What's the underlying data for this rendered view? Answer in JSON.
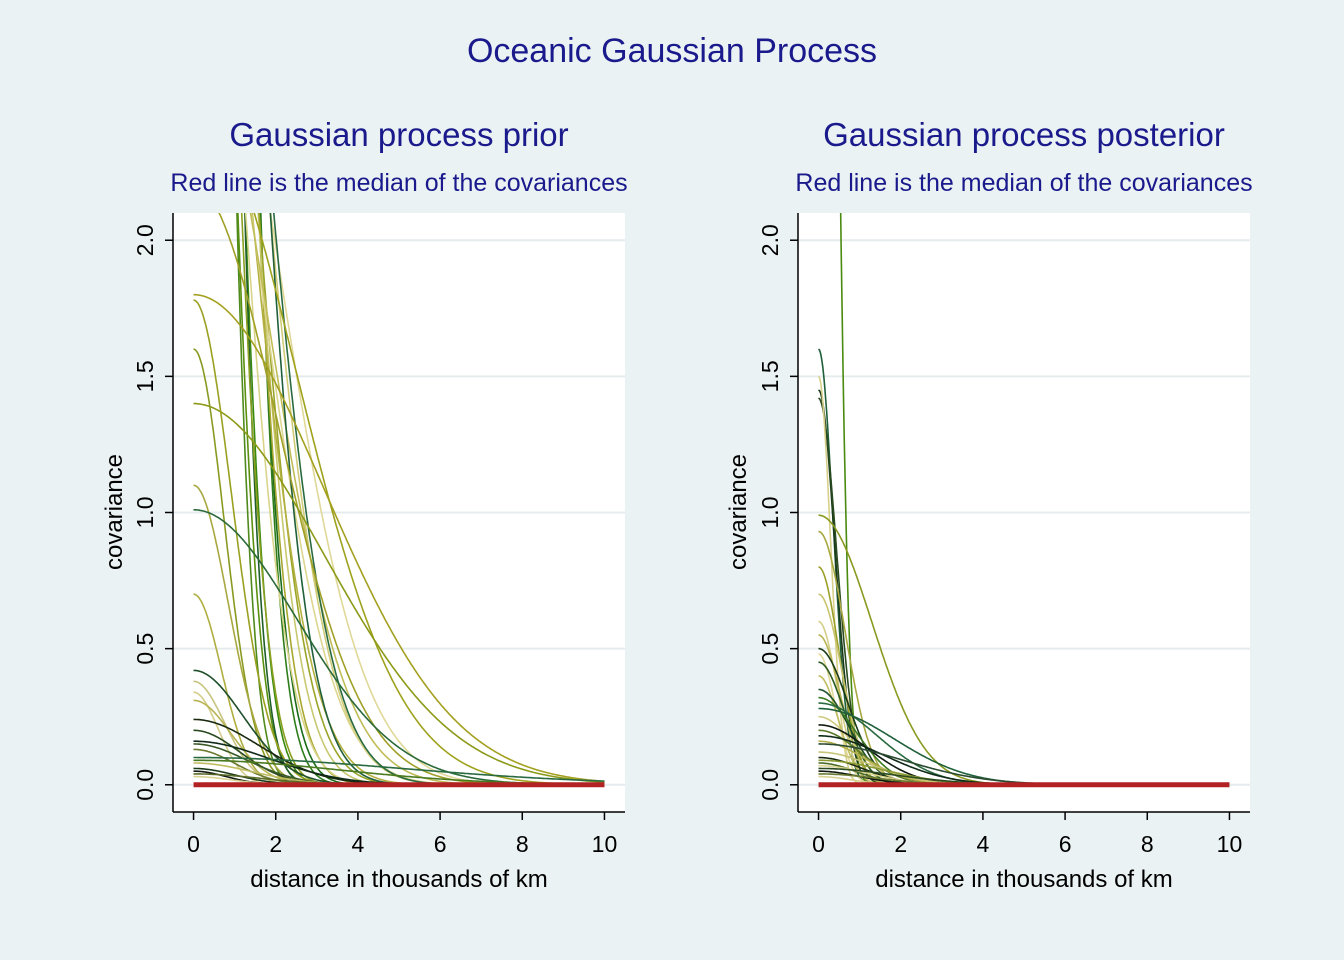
{
  "figure": {
    "title": "Oceanic Gaussian Process",
    "background_color": "#eaf2f3",
    "title_color": "#1a1a8c"
  },
  "chart_data": [
    {
      "type": "line",
      "title": "Gaussian process prior",
      "subtitle": "Red line is the median of the covariances",
      "xlabel": "distance in thousands of km",
      "ylabel": "covariance",
      "xlim": [
        -0.5,
        10.5
      ],
      "ylim": [
        -0.1,
        2.1
      ],
      "xticks": [
        0,
        2,
        4,
        6,
        8,
        10
      ],
      "xtick_labels": [
        "0",
        "2",
        "4",
        "6",
        "8",
        "10"
      ],
      "yticks": [
        0,
        0.5,
        1,
        1.5,
        2
      ],
      "ytick_labels": [
        "0.0",
        "0.5",
        "1.0",
        "1.5",
        "2.0"
      ],
      "grid": true,
      "legend": "none",
      "median_color": "#b22222",
      "median": {
        "x": [
          0,
          10
        ],
        "y": [
          0,
          0
        ]
      },
      "curve_form": "eta_sq * exp(-rho_sq * distance^2)",
      "curves": [
        {
          "eta_sq": 9.0,
          "rho_sq": 0.55,
          "color": "#1a6b1a"
        },
        {
          "eta_sq": 12.0,
          "rho_sq": 0.65,
          "color": "#2e7d1a"
        },
        {
          "eta_sq": 7.5,
          "rho_sq": 0.8,
          "color": "#3a8a10"
        },
        {
          "eta_sq": 6.0,
          "rho_sq": 0.9,
          "color": "#5a9010"
        },
        {
          "eta_sq": 10.0,
          "rho_sq": 1.0,
          "color": "#1f5f2a"
        },
        {
          "eta_sq": 8.0,
          "rho_sq": 1.2,
          "color": "#4f8a1c"
        },
        {
          "eta_sq": 5.5,
          "rho_sq": 0.7,
          "color": "#8aa020"
        },
        {
          "eta_sq": 6.5,
          "rho_sq": 0.45,
          "color": "#a8a830"
        },
        {
          "eta_sq": 5.0,
          "rho_sq": 0.35,
          "color": "#c8c870"
        },
        {
          "eta_sq": 4.0,
          "rho_sq": 0.4,
          "color": "#d8d48a"
        },
        {
          "eta_sq": 4.5,
          "rho_sq": 0.3,
          "color": "#9aa428"
        },
        {
          "eta_sq": 3.5,
          "rho_sq": 0.25,
          "color": "#b4b040"
        },
        {
          "eta_sq": 4.2,
          "rho_sq": 0.2,
          "color": "#d0cc78"
        },
        {
          "eta_sq": 3.0,
          "rho_sq": 0.18,
          "color": "#dcd690"
        },
        {
          "eta_sq": 2.8,
          "rho_sq": 0.15,
          "color": "#c0bc58"
        },
        {
          "eta_sq": 3.2,
          "rho_sq": 0.12,
          "color": "#e0d898"
        },
        {
          "eta_sq": 6.0,
          "rho_sq": 0.3,
          "color": "#1f5f3a"
        },
        {
          "eta_sq": 4.5,
          "rho_sq": 0.2,
          "color": "#2a6a40"
        },
        {
          "eta_sq": 2.2,
          "rho_sq": 0.12,
          "color": "#a0a028"
        },
        {
          "eta_sq": 2.5,
          "rho_sq": 0.08,
          "color": "#9ea21c"
        },
        {
          "eta_sq": 1.8,
          "rho_sq": 0.05,
          "color": "#a4a020"
        },
        {
          "eta_sq": 1.4,
          "rho_sq": 0.05,
          "color": "#8c9a18"
        },
        {
          "eta_sq": 1.78,
          "rho_sq": 0.6,
          "color": "#9aa020"
        },
        {
          "eta_sq": 1.6,
          "rho_sq": 0.9,
          "color": "#8a9a20"
        },
        {
          "eta_sq": 1.1,
          "rho_sq": 0.7,
          "color": "#a8a840"
        },
        {
          "eta_sq": 1.01,
          "rho_sq": 0.08,
          "color": "#2a6a3a"
        },
        {
          "eta_sq": 0.7,
          "rho_sq": 1.1,
          "color": "#b0ae40"
        },
        {
          "eta_sq": 0.42,
          "rho_sq": 0.35,
          "color": "#1f4f2a"
        },
        {
          "eta_sq": 0.38,
          "rho_sq": 0.9,
          "color": "#c8c480"
        },
        {
          "eta_sq": 0.34,
          "rho_sq": 1.4,
          "color": "#d4ce8a"
        },
        {
          "eta_sq": 0.31,
          "rho_sq": 0.6,
          "color": "#b8b454"
        },
        {
          "eta_sq": 0.24,
          "rho_sq": 0.2,
          "color": "#1a2a10"
        },
        {
          "eta_sq": 0.2,
          "rho_sq": 0.4,
          "color": "#2a4a20"
        },
        {
          "eta_sq": 0.16,
          "rho_sq": 0.15,
          "color": "#0f2a18"
        },
        {
          "eta_sq": 0.15,
          "rho_sq": 0.3,
          "color": "#3a5a28"
        },
        {
          "eta_sq": 0.13,
          "rho_sq": 0.5,
          "color": "#6a7a30"
        },
        {
          "eta_sq": 0.1,
          "rho_sq": 0.02,
          "color": "#2a6a40"
        },
        {
          "eta_sq": 0.09,
          "rho_sq": 0.04,
          "color": "#4a7a20"
        },
        {
          "eta_sq": 0.08,
          "rho_sq": 0.25,
          "color": "#c0bc60"
        },
        {
          "eta_sq": 0.06,
          "rho_sq": 0.5,
          "color": "#1a3a18"
        },
        {
          "eta_sq": 0.05,
          "rho_sq": 0.8,
          "color": "#101a10"
        },
        {
          "eta_sq": 0.04,
          "rho_sq": 0.2,
          "color": "#5a6a28"
        },
        {
          "eta_sq": 0.03,
          "rho_sq": 0.6,
          "color": "#d8d290"
        }
      ]
    },
    {
      "type": "line",
      "title": "Gaussian process posterior",
      "subtitle": "Red line is the median of the covariances",
      "xlabel": "distance in thousands of km",
      "ylabel": "covariance",
      "xlim": [
        -0.5,
        10.5
      ],
      "ylim": [
        -0.1,
        2.1
      ],
      "xticks": [
        0,
        2,
        4,
        6,
        8,
        10
      ],
      "xtick_labels": [
        "0",
        "2",
        "4",
        "6",
        "8",
        "10"
      ],
      "yticks": [
        0,
        0.5,
        1,
        1.5,
        2
      ],
      "ytick_labels": [
        "0.0",
        "0.5",
        "1.0",
        "1.5",
        "2.0"
      ],
      "grid": true,
      "legend": "none",
      "median_color": "#b22222",
      "median": {
        "x": [
          0,
          10
        ],
        "y": [
          0,
          0
        ]
      },
      "curve_form": "eta_sq * exp(-rho_sq * distance^2)",
      "curves": [
        {
          "eta_sq": 9.0,
          "rho_sq": 5.0,
          "color": "#4a8a10"
        },
        {
          "eta_sq": 1.6,
          "rho_sq": 4.0,
          "color": "#1f5f3a"
        },
        {
          "eta_sq": 1.45,
          "rho_sq": 3.2,
          "color": "#1a3a1a"
        },
        {
          "eta_sq": 1.42,
          "rho_sq": 2.6,
          "color": "#2a4a20"
        },
        {
          "eta_sq": 1.5,
          "rho_sq": 6.0,
          "color": "#d8d08a"
        },
        {
          "eta_sq": 0.99,
          "rho_sq": 0.3,
          "color": "#8a9a20"
        },
        {
          "eta_sq": 0.93,
          "rho_sq": 1.2,
          "color": "#a8a840"
        },
        {
          "eta_sq": 0.8,
          "rho_sq": 2.0,
          "color": "#9aa028"
        },
        {
          "eta_sq": 0.7,
          "rho_sq": 1.6,
          "color": "#c8c470"
        },
        {
          "eta_sq": 0.6,
          "rho_sq": 2.5,
          "color": "#d4ce88"
        },
        {
          "eta_sq": 0.55,
          "rho_sq": 1.8,
          "color": "#b8b454"
        },
        {
          "eta_sq": 0.5,
          "rho_sq": 1.0,
          "color": "#1a3a18"
        },
        {
          "eta_sq": 0.48,
          "rho_sq": 3.0,
          "color": "#e0d898"
        },
        {
          "eta_sq": 0.45,
          "rho_sq": 1.3,
          "color": "#2a5a20"
        },
        {
          "eta_sq": 0.4,
          "rho_sq": 2.2,
          "color": "#c0bc60"
        },
        {
          "eta_sq": 0.35,
          "rho_sq": 0.9,
          "color": "#1f4f2a"
        },
        {
          "eta_sq": 0.32,
          "rho_sq": 0.6,
          "color": "#3a7a20"
        },
        {
          "eta_sq": 0.3,
          "rho_sq": 0.25,
          "color": "#2a6a40"
        },
        {
          "eta_sq": 0.28,
          "rho_sq": 0.15,
          "color": "#1f5f3a"
        },
        {
          "eta_sq": 0.25,
          "rho_sq": 0.7,
          "color": "#d0ca80"
        },
        {
          "eta_sq": 0.22,
          "rho_sq": 0.35,
          "color": "#101a10"
        },
        {
          "eta_sq": 0.2,
          "rho_sq": 0.5,
          "color": "#5a7a28"
        },
        {
          "eta_sq": 0.18,
          "rho_sq": 0.2,
          "color": "#0f2a18"
        },
        {
          "eta_sq": 0.16,
          "rho_sq": 0.4,
          "color": "#b4b04c"
        },
        {
          "eta_sq": 0.15,
          "rho_sq": 0.12,
          "color": "#2a4a30"
        },
        {
          "eta_sq": 0.12,
          "rho_sq": 0.3,
          "color": "#c8c478"
        },
        {
          "eta_sq": 0.1,
          "rho_sq": 0.45,
          "color": "#1a2a10"
        },
        {
          "eta_sq": 0.09,
          "rho_sq": 0.2,
          "color": "#8a9a30"
        },
        {
          "eta_sq": 0.08,
          "rho_sq": 0.6,
          "color": "#4a6a28"
        },
        {
          "eta_sq": 0.07,
          "rho_sq": 0.35,
          "color": "#dcd690"
        },
        {
          "eta_sq": 0.06,
          "rho_sq": 0.15,
          "color": "#2a4a20"
        },
        {
          "eta_sq": 0.05,
          "rho_sq": 0.5,
          "color": "#101a10"
        },
        {
          "eta_sq": 0.04,
          "rho_sq": 0.25,
          "color": "#6a7a30"
        },
        {
          "eta_sq": 0.03,
          "rho_sq": 0.8,
          "color": "#d8d290"
        }
      ]
    }
  ]
}
